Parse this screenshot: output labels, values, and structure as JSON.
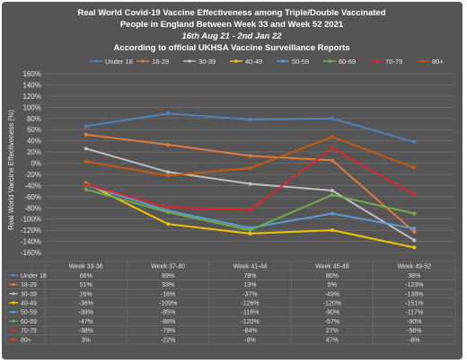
{
  "colors": {
    "background": "#555555",
    "grid": "#6e6e6e",
    "text": "#e6e6e6",
    "title": "#ffffff",
    "series": [
      "#4f81bd",
      "#e07b39",
      "#bfbfbf",
      "#f2c200",
      "#5b9bd5",
      "#70ad47",
      "#d9262b",
      "#c55a11"
    ]
  },
  "chart_data": {
    "type": "line",
    "title_lines": [
      "Real World Covid-19 Vaccine Effectiveness among Triple/Double Vaccinated",
      "People in England Between Week 33 and Week 52 2021",
      "16th Aug 21 - 2nd Jan 22",
      "According to official UKHSA Vaccine Surveillance Reports"
    ],
    "ylabel": "Real World Vaccine Effectiveness (%)",
    "xlabel": "",
    "ylim": [
      -160,
      160
    ],
    "y_ticks": [
      "160%",
      "140%",
      "120%",
      "100%",
      "80%",
      "60%",
      "40%",
      "20%",
      "0%",
      "-20%",
      "-40%",
      "-60%",
      "-80%",
      "-100%",
      "-120%",
      "-140%",
      "-160%"
    ],
    "grid": true,
    "legend_position": "top",
    "categories": [
      "Week 33-36",
      "Week 37-40",
      "Week 41-44",
      "Week 45-48",
      "Week 49-52"
    ],
    "series": [
      {
        "name": "Under 18",
        "values": [
          66,
          89,
          78,
          80,
          38
        ],
        "labels": [
          "66%",
          "89%",
          "78%",
          "80%",
          "38%"
        ]
      },
      {
        "name": "18-29",
        "values": [
          51,
          33,
          13,
          5,
          -123
        ],
        "labels": [
          "51%",
          "33%",
          "13%",
          "5%",
          "-123%"
        ]
      },
      {
        "name": "30-39",
        "values": [
          26,
          -16,
          -37,
          -49,
          -138
        ],
        "labels": [
          "26%",
          "-16%",
          "-37%",
          "-49%",
          "-138%"
        ]
      },
      {
        "name": "40-49",
        "values": [
          -36,
          -109,
          -126,
          -120,
          -151
        ],
        "labels": [
          "-36%",
          "-109%",
          "-126%",
          "-120%",
          "-151%"
        ]
      },
      {
        "name": "50-59",
        "values": [
          -39,
          -85,
          -116,
          -90,
          -117
        ],
        "labels": [
          "-39%",
          "-85%",
          "-116%",
          "-90%",
          "-117%"
        ]
      },
      {
        "name": "60-69",
        "values": [
          -47,
          -88,
          -120,
          -57,
          -90
        ],
        "labels": [
          "-47%",
          "-88%",
          "-120%",
          "-57%",
          "-90%"
        ]
      },
      {
        "name": "70-79",
        "values": [
          -38,
          -79,
          -84,
          27,
          -56
        ],
        "labels": [
          "-38%",
          "-79%",
          "-84%",
          "27%",
          "-56%"
        ]
      },
      {
        "name": "80+",
        "values": [
          3,
          -22,
          -9,
          47,
          -8
        ],
        "labels": [
          "3%",
          "-22%",
          "-9%",
          "47%",
          "-8%"
        ]
      }
    ]
  }
}
